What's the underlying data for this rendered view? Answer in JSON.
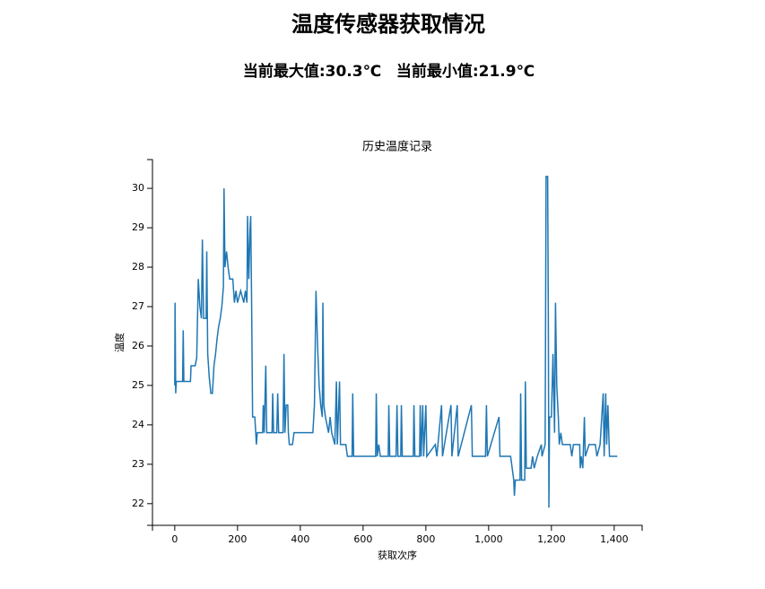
{
  "header": {
    "title": "温度传感器获取情况",
    "max_text": "当前最大值:30.3℃",
    "min_text": "当前最小值:21.9℃"
  },
  "chart_data": {
    "type": "line",
    "title": "历史温度记录",
    "x_label": "获取次序",
    "y_label": "温度",
    "x": [
      0,
      1,
      3,
      5,
      25,
      27,
      29,
      50,
      52,
      65,
      70,
      75,
      80,
      85,
      88,
      92,
      100,
      102,
      105,
      110,
      115,
      120,
      125,
      130,
      135,
      140,
      145,
      150,
      155,
      157,
      160,
      165,
      170,
      175,
      185,
      190,
      195,
      200,
      210,
      220,
      225,
      230,
      232,
      236,
      240,
      242,
      245,
      248,
      255,
      258,
      260,
      263,
      280,
      282,
      285,
      290,
      293,
      310,
      312,
      315,
      325,
      328,
      331,
      345,
      348,
      351,
      355,
      360,
      362,
      365,
      375,
      380,
      440,
      445,
      450,
      455,
      460,
      465,
      470,
      472,
      475,
      480,
      490,
      495,
      500,
      510,
      515,
      518,
      525,
      528,
      545,
      550,
      565,
      567,
      570,
      640,
      642,
      645,
      650,
      655,
      680,
      682,
      685,
      705,
      708,
      711,
      720,
      722,
      725,
      760,
      762,
      765,
      780,
      782,
      785,
      790,
      793,
      800,
      803,
      830,
      835,
      850,
      853,
      880,
      883,
      900,
      903,
      945,
      948,
      990,
      993,
      996,
      1033,
      1036,
      1070,
      1075,
      1080,
      1082,
      1085,
      1100,
      1102,
      1105,
      1115,
      1117,
      1120,
      1135,
      1140,
      1145,
      1155,
      1168,
      1170,
      1180,
      1183,
      1188,
      1190,
      1192,
      1194,
      1200,
      1205,
      1210,
      1213,
      1217,
      1222,
      1225,
      1230,
      1235,
      1260,
      1265,
      1270,
      1290,
      1292,
      1295,
      1300,
      1305,
      1308,
      1320,
      1340,
      1345,
      1355,
      1365,
      1368,
      1373,
      1376,
      1380,
      1385,
      1410
    ],
    "series": [
      {
        "color": "#1f77b4",
        "values": [
          25.0,
          27.1,
          24.8,
          25.1,
          25.1,
          26.4,
          25.1,
          25.1,
          25.5,
          25.5,
          25.7,
          27.7,
          27.0,
          26.7,
          28.7,
          26.7,
          26.7,
          28.4,
          25.8,
          25.2,
          24.8,
          24.8,
          25.5,
          25.8,
          26.2,
          26.5,
          26.7,
          27.0,
          27.5,
          30.0,
          28.0,
          28.4,
          28.0,
          27.7,
          27.7,
          27.1,
          27.4,
          27.1,
          27.4,
          27.1,
          27.4,
          27.1,
          29.3,
          27.7,
          29.0,
          29.3,
          27.0,
          24.2,
          24.2,
          23.8,
          23.5,
          23.8,
          23.8,
          24.5,
          23.8,
          25.5,
          23.8,
          23.8,
          24.8,
          23.8,
          23.8,
          24.8,
          23.8,
          23.8,
          25.8,
          23.8,
          24.5,
          24.5,
          23.8,
          23.5,
          23.5,
          23.8,
          23.8,
          24.5,
          27.4,
          26.0,
          25.0,
          24.5,
          24.2,
          27.1,
          24.5,
          24.2,
          23.8,
          24.2,
          23.8,
          23.5,
          25.1,
          23.5,
          25.1,
          23.5,
          23.5,
          23.2,
          23.2,
          24.8,
          23.2,
          23.2,
          24.8,
          23.2,
          23.5,
          23.2,
          23.2,
          24.5,
          23.2,
          23.2,
          24.5,
          23.2,
          23.2,
          24.5,
          23.2,
          23.2,
          24.5,
          23.2,
          23.2,
          24.5,
          23.2,
          24.5,
          23.2,
          24.5,
          23.2,
          23.5,
          23.2,
          24.5,
          23.2,
          24.5,
          23.2,
          24.5,
          23.2,
          24.5,
          23.2,
          23.2,
          24.5,
          23.2,
          24.2,
          23.2,
          23.2,
          22.9,
          22.6,
          22.2,
          22.6,
          22.6,
          24.8,
          22.6,
          22.6,
          25.1,
          22.9,
          22.9,
          23.2,
          22.9,
          23.2,
          23.5,
          23.2,
          23.5,
          30.3,
          30.3,
          27.0,
          21.9,
          24.2,
          24.2,
          25.8,
          23.8,
          27.1,
          25.0,
          24.2,
          23.5,
          23.8,
          23.5,
          23.5,
          23.2,
          23.5,
          23.5,
          22.9,
          23.2,
          22.9,
          24.2,
          23.2,
          23.5,
          23.5,
          23.2,
          23.5,
          24.8,
          23.2,
          24.8,
          23.5,
          24.5,
          23.2,
          23.2
        ]
      }
    ],
    "xlim": [
      -71,
      1489
    ],
    "ylim": [
      21.45,
      30.73
    ],
    "xticks": [
      0,
      200,
      400,
      600,
      800,
      {
        "value": 1000,
        "label": "1,000"
      },
      {
        "value": 1200,
        "label": "1,200"
      },
      {
        "value": 1400,
        "label": "1,400"
      }
    ],
    "yticks": [
      22,
      23,
      24,
      25,
      26,
      27,
      28,
      29,
      30
    ]
  }
}
